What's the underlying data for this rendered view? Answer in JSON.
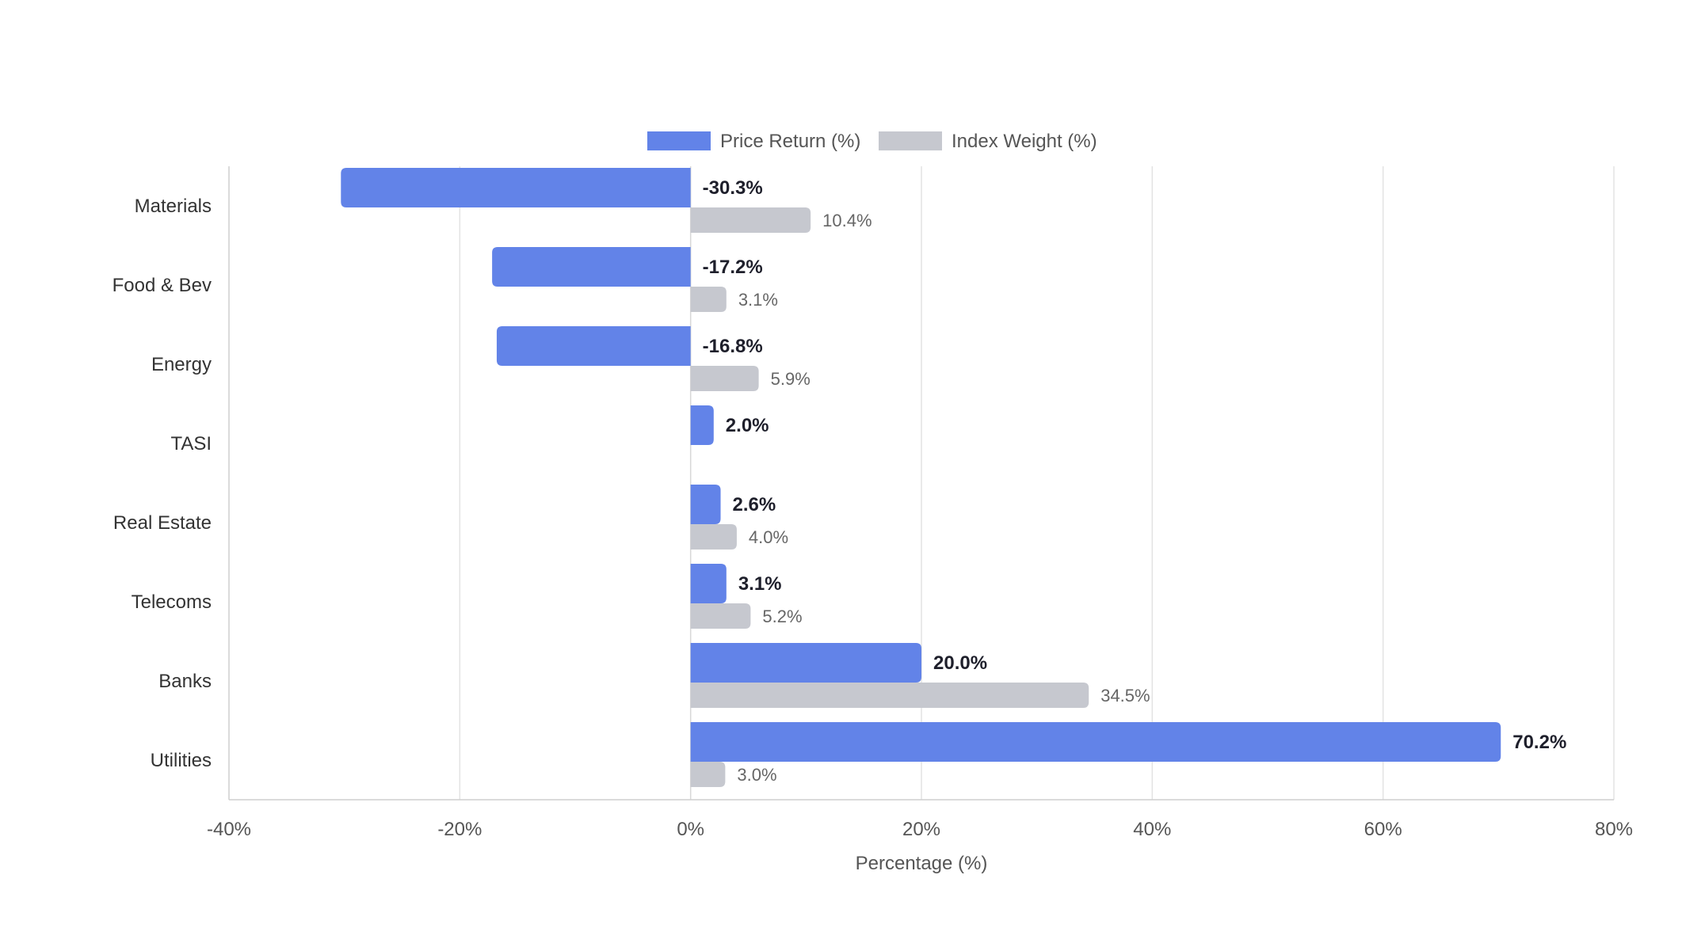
{
  "chart_data": {
    "type": "bar",
    "orientation": "horizontal",
    "categories": [
      "Materials",
      "Food & Bev",
      "Energy",
      "TASI",
      "Real Estate",
      "Telecoms",
      "Banks",
      "Utilities"
    ],
    "series": [
      {
        "name": "Price Return (%)",
        "color": "#6283e8",
        "values": [
          -30.3,
          -17.2,
          -16.8,
          2.0,
          2.6,
          3.1,
          20.0,
          70.2
        ],
        "labels": [
          "-30.3%",
          "-17.2%",
          "-16.8%",
          "2.0%",
          "2.6%",
          "3.1%",
          "20.0%",
          "70.2%"
        ]
      },
      {
        "name": "Index Weight (%)",
        "color": "#c6c8cf",
        "values": [
          10.4,
          3.1,
          5.9,
          null,
          4.0,
          5.2,
          34.5,
          3.0
        ],
        "labels": [
          "10.4%",
          "3.1%",
          "5.9%",
          "",
          "4.0%",
          "5.2%",
          "34.5%",
          "3.0%"
        ]
      }
    ],
    "xlabel": "Percentage (%)",
    "ylabel": "",
    "xlim": [
      -40,
      80
    ],
    "xticks": [
      -40,
      -20,
      0,
      20,
      40,
      60,
      80
    ],
    "xtick_labels": [
      "-40%",
      "-20%",
      "0%",
      "20%",
      "40%",
      "60%",
      "80%"
    ],
    "grid": true,
    "legend_position": "top-center"
  }
}
